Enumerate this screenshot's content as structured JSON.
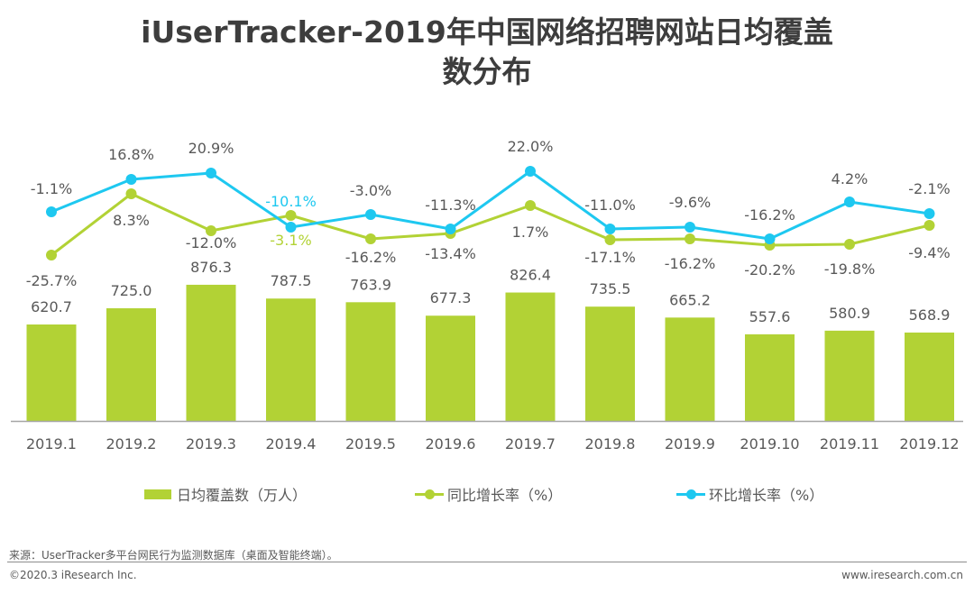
{
  "title": {
    "line1": "iUserTracker-2019年中国网络招聘网站日均覆盖",
    "line2": "数分布"
  },
  "colors": {
    "bar": "#b2d235",
    "yoy_line": "#b2d235",
    "mom_line": "#1ec8f0",
    "text": "#595959",
    "axis": "#a6a6a6"
  },
  "chart_data": {
    "type": "bar",
    "title": "iUserTracker-2019年中国网络招聘网站日均覆盖数分布",
    "xlabel": "",
    "ylabel": "",
    "categories": [
      "2019.1",
      "2019.2",
      "2019.3",
      "2019.4",
      "2019.5",
      "2019.6",
      "2019.7",
      "2019.8",
      "2019.9",
      "2019.10",
      "2019.11",
      "2019.12"
    ],
    "series": [
      {
        "name": "日均覆盖数（万人）",
        "type": "bar",
        "values": [
          620.7,
          725.0,
          876.3,
          787.5,
          763.9,
          677.3,
          826.4,
          735.5,
          665.2,
          557.6,
          580.9,
          568.9
        ],
        "labels": [
          "620.7",
          "725.0",
          "876.3",
          "787.5",
          "763.9",
          "677.3",
          "826.4",
          "735.5",
          "665.2",
          "557.6",
          "580.9",
          "568.9"
        ]
      },
      {
        "name": "同比增长率（%）",
        "type": "line",
        "values": [
          -25.7,
          8.3,
          -12.0,
          -3.1,
          -16.2,
          -13.4,
          1.7,
          -17.1,
          -16.2,
          -20.2,
          -19.8,
          -9.4
        ],
        "labels": [
          "-25.7%",
          "8.3%",
          "-12.0%",
          "-3.1%",
          "-16.2%",
          "-13.4%",
          "1.7%",
          "-17.1%",
          "-16.2%",
          "-20.2%",
          "-19.8%",
          "-9.4%"
        ]
      },
      {
        "name": "环比增长率（%）",
        "type": "line",
        "values": [
          -1.1,
          16.8,
          20.9,
          -10.1,
          -3.0,
          -11.3,
          22.0,
          -11.0,
          -9.6,
          -16.2,
          4.2,
          -2.1
        ],
        "labels": [
          "-1.1%",
          "16.8%",
          "20.9%",
          "-10.1%",
          "-3.0%",
          "-11.3%",
          "22.0%",
          "-11.0%",
          "-9.6%",
          "-16.2%",
          "4.2%",
          "-2.1%"
        ]
      }
    ],
    "ylim": [
      0,
      1000
    ],
    "grid": false,
    "legend_position": "bottom"
  },
  "legend": {
    "items": [
      "日均覆盖数（万人）",
      "同比增长率（%）",
      "环比增长率（%）"
    ]
  },
  "footer": {
    "source": "来源：UserTracker多平台网民行为监测数据库（桌面及智能终端）。",
    "copyright": "©2020.3 iResearch Inc.",
    "website": "www.iresearch.com.cn"
  }
}
